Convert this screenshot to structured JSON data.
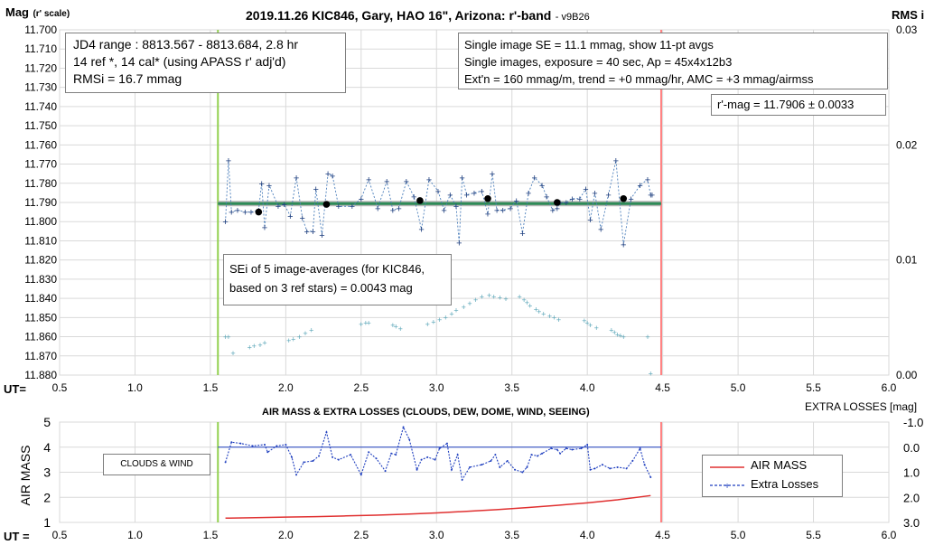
{
  "chart_data": [
    {
      "type": "scatter",
      "title": "2019.11.26 KIC846, Gary, HAO 16\", Arizona: r'-band",
      "title_suffix": "- v9B26",
      "ylabel_main": "Mag",
      "ylabel_sub": "(r' scale)",
      "y2label": "RMS i",
      "xlabel": "UT=",
      "xlim": [
        0.5,
        6.0
      ],
      "ylim": [
        11.7,
        11.88
      ],
      "y_inverted": true,
      "x_ticks": [
        "0.5",
        "1.0",
        "1.5",
        "2.0",
        "2.5",
        "3.0",
        "3.5",
        "4.0",
        "4.5",
        "5.0",
        "5.5",
        "6.0"
      ],
      "y_ticks": [
        "11.700",
        "11.710",
        "11.720",
        "11.730",
        "11.740",
        "11.750",
        "11.760",
        "11.770",
        "11.780",
        "11.790",
        "11.800",
        "11.810",
        "11.820",
        "11.830",
        "11.840",
        "11.850",
        "11.860",
        "11.870",
        "11.880"
      ],
      "y2lim": [
        0,
        0.03
      ],
      "y2_ticks": [
        "0.03",
        "0.02",
        "0.01",
        "0.00"
      ],
      "grid": true,
      "vlines": [
        {
          "x": 1.55,
          "color": "#92d050"
        },
        {
          "x": 4.49,
          "color": "#ff8080"
        }
      ],
      "series": [
        {
          "style": "dashed-plus",
          "color": "#4a7ebb",
          "x": [
            1.6,
            1.62,
            1.64,
            1.68,
            1.73,
            1.77,
            1.82,
            1.84,
            1.86,
            1.89,
            1.95,
            1.99,
            2.03,
            2.07,
            2.11,
            2.14,
            2.18,
            2.2,
            2.24,
            2.28,
            2.31,
            2.35,
            2.44,
            2.5,
            2.55,
            2.61,
            2.67,
            2.71,
            2.75,
            2.8,
            2.85,
            2.9,
            2.95,
            3.01,
            3.05,
            3.09,
            3.13,
            3.15,
            3.17,
            3.2,
            3.25,
            3.3,
            3.34,
            3.37,
            3.4,
            3.44,
            3.49,
            3.53,
            3.57,
            3.61,
            3.65,
            3.7,
            3.73,
            3.77,
            3.8,
            3.82,
            3.86,
            3.9,
            3.95,
            3.99,
            4.02,
            4.05,
            4.09,
            4.14,
            4.19,
            4.24,
            4.29,
            4.35,
            4.4,
            4.42,
            4.43
          ],
          "y": [
            11.8,
            11.768,
            11.795,
            11.794,
            11.795,
            11.795,
            11.794,
            11.78,
            11.803,
            11.781,
            11.792,
            11.791,
            11.797,
            11.777,
            11.798,
            11.805,
            11.805,
            11.783,
            11.807,
            11.775,
            11.776,
            11.792,
            11.792,
            11.788,
            11.778,
            11.793,
            11.779,
            11.794,
            11.793,
            11.779,
            11.787,
            11.804,
            11.778,
            11.784,
            11.794,
            11.786,
            11.792,
            11.811,
            11.777,
            11.786,
            11.785,
            11.784,
            11.796,
            11.775,
            11.794,
            11.794,
            11.793,
            11.789,
            11.806,
            11.785,
            11.777,
            11.781,
            11.787,
            11.794,
            11.793,
            11.79,
            11.79,
            11.788,
            11.788,
            11.783,
            11.799,
            11.785,
            11.804,
            11.786,
            11.768,
            11.812,
            11.788,
            11.781,
            11.778,
            11.786,
            11.786
          ]
        },
        {
          "style": "dot",
          "color": "#000000",
          "x": [
            1.82,
            2.27,
            2.89,
            3.34,
            3.8,
            4.24
          ],
          "y": [
            11.795,
            11.791,
            11.789,
            11.788,
            11.79,
            11.788
          ]
        },
        {
          "style": "band",
          "color": "#2e8b57",
          "x": [
            1.55,
            4.49
          ],
          "y": [
            11.7906,
            11.7906
          ]
        }
      ],
      "rms_series": {
        "axis": "y2",
        "style": "small-plus",
        "color": "#5aa6b8",
        "x": [
          1.6,
          1.62,
          1.65,
          1.76,
          1.79,
          1.83,
          1.86,
          2.02,
          2.05,
          2.09,
          2.13,
          2.17,
          2.5,
          2.53,
          2.55,
          2.71,
          2.73,
          2.76,
          2.94,
          2.98,
          3.02,
          3.06,
          3.1,
          3.13,
          3.18,
          3.22,
          3.26,
          3.3,
          3.35,
          3.38,
          3.42,
          3.46,
          3.55,
          3.58,
          3.6,
          3.62,
          3.66,
          3.68,
          3.71,
          3.75,
          3.78,
          3.81,
          3.98,
          4.0,
          4.02,
          4.06,
          4.16,
          4.18,
          4.2,
          4.22,
          4.24,
          4.4,
          4.42
        ],
        "y": [
          0.0033,
          0.0033,
          0.0019,
          0.0024,
          0.0025,
          0.0026,
          0.0028,
          0.003,
          0.0031,
          0.0033,
          0.0036,
          0.0039,
          0.0044,
          0.0045,
          0.0045,
          0.0043,
          0.0042,
          0.004,
          0.0044,
          0.0046,
          0.0048,
          0.005,
          0.0053,
          0.0056,
          0.0059,
          0.0062,
          0.0065,
          0.0068,
          0.0069,
          0.0068,
          0.0067,
          0.0066,
          0.0068,
          0.0065,
          0.0063,
          0.006,
          0.0057,
          0.0055,
          0.0053,
          0.0051,
          0.005,
          0.0048,
          0.0047,
          0.0045,
          0.0043,
          0.0041,
          0.0039,
          0.0037,
          0.0035,
          0.0034,
          0.0033,
          0.0033,
          0.0001
        ]
      },
      "boxes": {
        "info_left": [
          "JD4 range : 8813.567 - 8813.684,  2.8  hr",
          "14 ref *, 14 cal* (using APASS r' adj'd)",
          "RMSi = 16.7 mmag"
        ],
        "info_right": [
          "Single image SE = 11.1 mmag, show  11-pt avgs",
          "Single images, exposure = 40 sec, Ap = 45x4x12b3",
          "Ext'n = 160 mmag/m, trend =  +0 mmag/hr, AMC = +3 mmag/airmss"
        ],
        "result": "r'-mag = 11.7906 ± 0.0033",
        "sei": [
          "SEi of 5 image-averages (for KIC846,",
          "based on 3 ref stars) = 0.0043 mag"
        ]
      }
    },
    {
      "type": "line",
      "title": "AIR MASS & EXTRA LOSSES (CLOUDS, DEW, DOME, WIND, SEEING)",
      "ylabel": "AIR MASS",
      "y2label": "EXTRA LOSSES [mag]",
      "xlabel": "UT =",
      "xlim": [
        0.5,
        6.0
      ],
      "ylim": [
        1,
        5
      ],
      "y2lim": [
        3.0,
        -1.0
      ],
      "x_ticks": [
        "0.5",
        "1.0",
        "1.5",
        "2.0",
        "2.5",
        "3.0",
        "3.5",
        "4.0",
        "4.5",
        "5.0",
        "5.5",
        "6.0"
      ],
      "y_ticks": [
        "5",
        "4",
        "3",
        "2",
        "1"
      ],
      "y2_ticks": [
        "-1.0",
        "0.0",
        "1.0",
        "2.0",
        "3.0"
      ],
      "vlines": [
        {
          "x": 1.55,
          "color": "#92d050"
        },
        {
          "x": 4.49,
          "color": "#ff8080"
        }
      ],
      "hline_y2": 0.0,
      "annotation": "CLOUDS & WIND",
      "legend": "right",
      "series": [
        {
          "name": "AIR MASS",
          "axis": "y",
          "color": "#e03030",
          "x": [
            1.6,
            1.8,
            2.0,
            2.2,
            2.4,
            2.6,
            2.8,
            3.0,
            3.2,
            3.4,
            3.6,
            3.8,
            4.0,
            4.2,
            4.42
          ],
          "y": [
            1.17,
            1.19,
            1.21,
            1.23,
            1.26,
            1.29,
            1.33,
            1.38,
            1.44,
            1.51,
            1.59,
            1.68,
            1.78,
            1.9,
            2.07
          ]
        },
        {
          "name": "Extra Losses",
          "axis": "y2",
          "color": "#1f3fbf",
          "x": [
            1.6,
            1.64,
            1.7,
            1.78,
            1.86,
            1.88,
            1.94,
            2.0,
            2.04,
            2.07,
            2.12,
            2.18,
            2.22,
            2.27,
            2.31,
            2.35,
            2.43,
            2.5,
            2.55,
            2.6,
            2.66,
            2.7,
            2.73,
            2.78,
            2.82,
            2.87,
            2.9,
            2.94,
            2.99,
            3.02,
            3.07,
            3.1,
            3.14,
            3.17,
            3.22,
            3.3,
            3.36,
            3.39,
            3.42,
            3.47,
            3.52,
            3.57,
            3.6,
            3.63,
            3.67,
            3.7,
            3.76,
            3.8,
            3.82,
            3.86,
            3.9,
            3.96,
            4.0,
            4.02,
            4.05,
            4.1,
            4.15,
            4.2,
            4.26,
            4.3,
            4.35,
            4.38,
            4.42
          ],
          "y": [
            0.6,
            -0.2,
            -0.15,
            -0.05,
            -0.1,
            0.2,
            -0.05,
            -0.1,
            0.4,
            1.1,
            0.6,
            0.55,
            0.35,
            -0.6,
            0.4,
            0.5,
            0.3,
            1.1,
            0.2,
            0.45,
            0.95,
            0.25,
            0.3,
            -0.8,
            -0.3,
            0.9,
            0.5,
            0.4,
            0.5,
            0.05,
            -0.15,
            0.9,
            0.3,
            1.3,
            0.8,
            0.7,
            0.55,
            0.3,
            0.8,
            0.55,
            0.9,
            1.0,
            0.8,
            0.3,
            0.35,
            0.25,
            0.05,
            0.1,
            0.25,
            0.05,
            0.1,
            0.05,
            -0.1,
            0.9,
            0.85,
            0.7,
            0.85,
            0.8,
            0.85,
            0.55,
            0.05,
            0.7,
            1.2
          ]
        }
      ]
    }
  ]
}
